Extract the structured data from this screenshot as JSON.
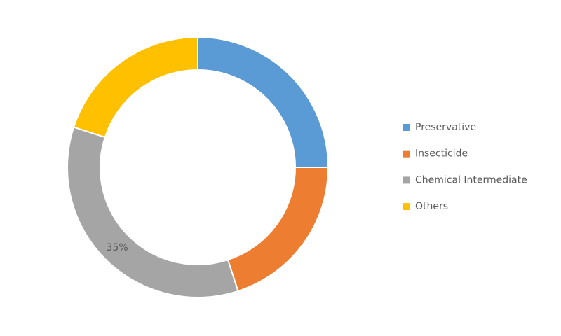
{
  "chart_data": {
    "type": "donut",
    "categories": [
      "Preservative",
      "Insecticide",
      "Chemical Intermediate",
      "Others"
    ],
    "values": [
      25,
      20,
      35,
      20
    ],
    "value_labels": [
      null,
      null,
      "35%",
      null
    ],
    "colors": [
      "#5b9bd5",
      "#ed7d31",
      "#a5a5a5",
      "#ffc000"
    ],
    "legend": "right"
  }
}
